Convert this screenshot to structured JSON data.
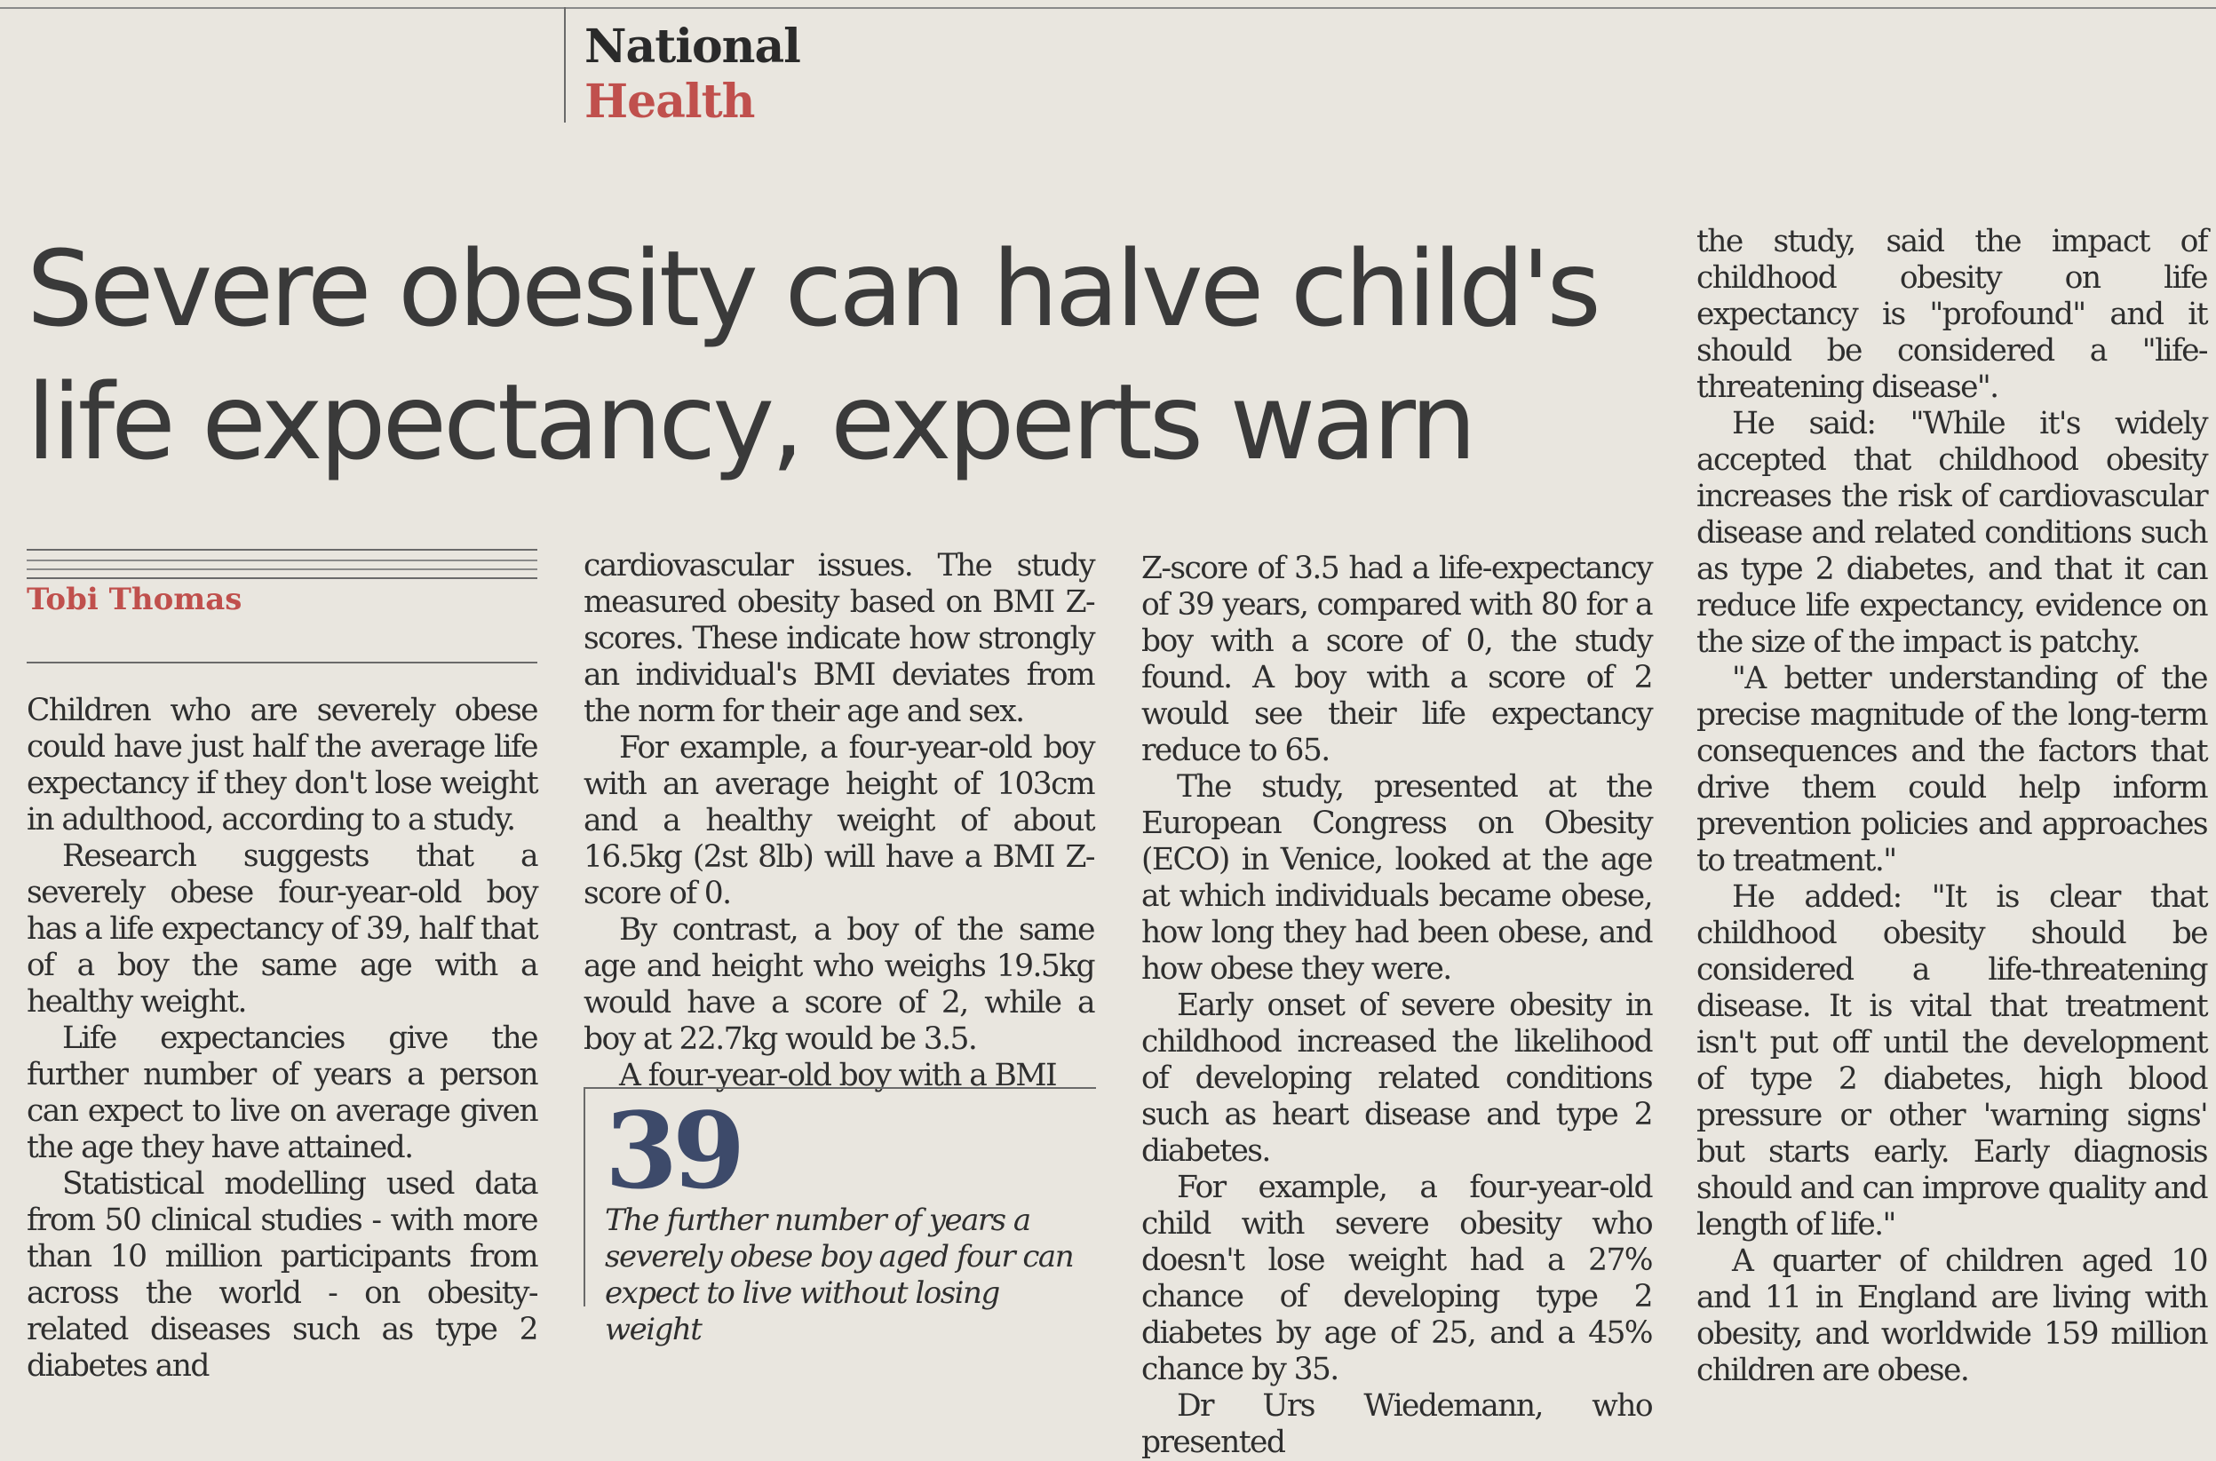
{
  "section": {
    "line1": "National",
    "line2": "Health"
  },
  "headline": "Severe obesity can halve child's\nlife expectancy, experts warn",
  "byline": "Tobi Thomas",
  "columns": [
    {
      "paragraphs": [
        "Children who are severely obese could have just half the average life expectancy if they don't lose weight in adulthood, according to a study.",
        "Research suggests that a severely obese four-year-old boy has a life expectancy of 39, half that of a boy the same age with a healthy weight.",
        "Life expectancies give the further number of years a person can expect to live on average given the age they have attained.",
        "Statistical modelling used data from 50 clinical studies - with more than 10 million participants from across the world - on obesity-related diseases such as type 2 diabetes and"
      ]
    },
    {
      "paragraphs": [
        "cardiovascular issues. The study measured obesity based on BMI Z-scores. These indicate how strongly an individual's BMI deviates from the norm for their age and sex.",
        "For example, a four-year-old boy with an average height of 103cm and a healthy weight of about 16.5kg (2st 8lb) will have a BMI Z-score of 0.",
        "By contrast, a boy of the same age and height who weighs 19.5kg would have a score of 2, while a boy at 22.7kg would be 3.5.",
        "A four-year-old boy with a BMI"
      ]
    },
    {
      "paragraphs": [
        "Z-score of 3.5 had a life-expectancy of 39 years, compared with 80 for a boy with a score of 0, the study found. A boy with a score of 2 would see their life expectancy reduce to 65.",
        "The study, presented at the European Congress on Obesity (ECO) in Venice, looked at the age at which individuals became obese, how long they had been obese, and how obese they were.",
        "Early onset of severe obesity in childhood increased the likelihood of developing related conditions such as heart disease and type 2 diabetes.",
        "For example, a four-year-old child with severe obesity who doesn't lose weight had a 27% chance of developing type 2 diabetes by age of 25, and a 45% chance by 35.",
        "Dr Urs Wiedemann, who presented"
      ]
    },
    {
      "paragraphs": [
        "the study, said the impact of childhood obesity on life expectancy is \"profound\" and it should be considered a \"life-threatening disease\".",
        "He said: \"While it's widely accepted that childhood obesity increases the risk of cardiovascular disease and related conditions such as type 2 diabetes, and that it can reduce life expectancy, evidence on the size of the impact is patchy.",
        "\"A better understanding of the precise magnitude of the long-term consequences and the factors that drive them could help inform prevention policies and approaches to treatment.\"",
        "He added: \"It is clear that childhood obesity should be considered a life-threatening disease. It is vital that treatment isn't put off until the development of type 2 diabetes, high blood pressure or other 'warning signs' but starts early. Early diagnosis should and can improve quality and length of life.\"",
        "A quarter of children aged 10 and 11 in England are living with obesity, and worldwide 159 million children are obese."
      ]
    }
  ],
  "pullquote": {
    "number": "39",
    "caption": "The further number of years a severely obese boy aged four can expect to live without losing weight"
  },
  "colors": {
    "accent": "#c0504d",
    "text": "#2e2e2e",
    "paper": "#e9e6df",
    "figure": "#3d4a6a"
  }
}
